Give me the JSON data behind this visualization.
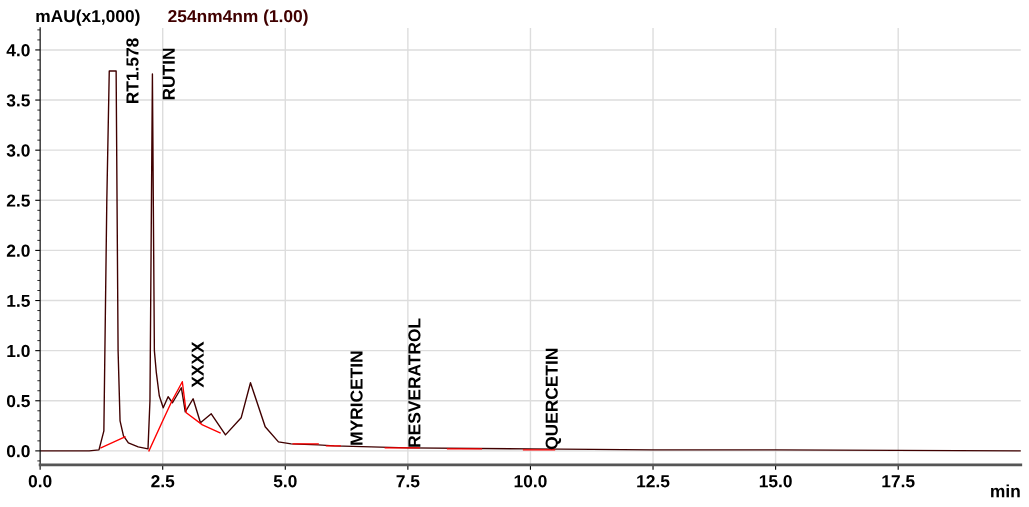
{
  "chart_data": {
    "type": "line",
    "xlabel": "min",
    "ylabel": "mAU(x1,000)",
    "xlim": [
      0,
      20
    ],
    "ylim": [
      -0.14,
      4.22
    ],
    "xticks": [
      {
        "value": 0,
        "label": "0.0"
      },
      2.5,
      {
        "value": 5,
        "label": "5.0"
      },
      7.5,
      {
        "value": 10,
        "label": "10.0"
      },
      12.5,
      {
        "value": 15,
        "label": "15.0"
      },
      17.5
    ],
    "yticks": [
      {
        "value": 0,
        "label": "0.0"
      },
      0.5,
      {
        "value": 1,
        "label": "1.0"
      },
      1.5,
      {
        "value": 2,
        "label": "2.0"
      },
      2.5,
      {
        "value": 3,
        "label": "3.0"
      },
      3.5,
      {
        "value": 4,
        "label": "4.0"
      }
    ],
    "grid": true,
    "marker": "none",
    "line_style": "solid",
    "series": [
      {
        "name": "254nm4nm (1.00)",
        "color": "#400000",
        "x": [
          0,
          1.0,
          1.2,
          1.3,
          1.36,
          1.41,
          1.55,
          1.59,
          1.63,
          1.7,
          1.8,
          2.0,
          2.2,
          2.24,
          2.29,
          2.33,
          2.37,
          2.43,
          2.51,
          2.61,
          2.7,
          2.88,
          2.96,
          3.12,
          3.27,
          3.49,
          3.78,
          4.1,
          4.29,
          4.59,
          4.86,
          5.12,
          5.67,
          6.0,
          7.5,
          10.0,
          12.5,
          15.0,
          20.0
        ],
        "values": [
          0.0,
          0.0,
          0.01,
          0.2,
          2.5,
          3.79,
          3.79,
          1.0,
          0.3,
          0.15,
          0.08,
          0.04,
          0.02,
          0.5,
          3.76,
          1.0,
          0.78,
          0.55,
          0.43,
          0.54,
          0.48,
          0.63,
          0.39,
          0.52,
          0.28,
          0.37,
          0.16,
          0.33,
          0.68,
          0.24,
          0.09,
          0.07,
          0.06,
          0.05,
          0.03,
          0.02,
          0.01,
          0.01,
          0.0
        ]
      },
      {
        "color": "#ff0000",
        "x": [
          1.24,
          1.73,
          1.9,
          2.22,
          2.51,
          2.69,
          2.9,
          2.98,
          3.31,
          3.67,
          4.5,
          5.16,
          5.67,
          5.75,
          5.84,
          6.12,
          6.5,
          7.04,
          7.73,
          8.0,
          8.31,
          9.0,
          9.4,
          9.86,
          10.49
        ],
        "values": [
          0.03,
          0.14,
          null,
          0.0,
          0.31,
          0.5,
          0.69,
          0.38,
          0.26,
          0.18,
          null,
          0.07,
          0.07,
          null,
          0.05,
          0.05,
          null,
          0.03,
          0.03,
          null,
          0.02,
          0.02,
          null,
          0.01,
          0.01
        ]
      }
    ],
    "annotations": [
      {
        "text": "RT1.578",
        "x": 1.55,
        "y": 3.79
      },
      {
        "text": "RUTIN",
        "x": 2.29,
        "y": 3.76
      },
      {
        "text": "XXXX",
        "x": 2.88,
        "y": 0.63
      },
      {
        "text": "MYRICETIN",
        "x": 6.12,
        "y": 0.05
      },
      {
        "text": "RESVERATROL",
        "x": 7.3,
        "y": 0.03
      },
      {
        "text": "QUERCETIN",
        "x": 10.1,
        "y": 0.01
      }
    ]
  }
}
